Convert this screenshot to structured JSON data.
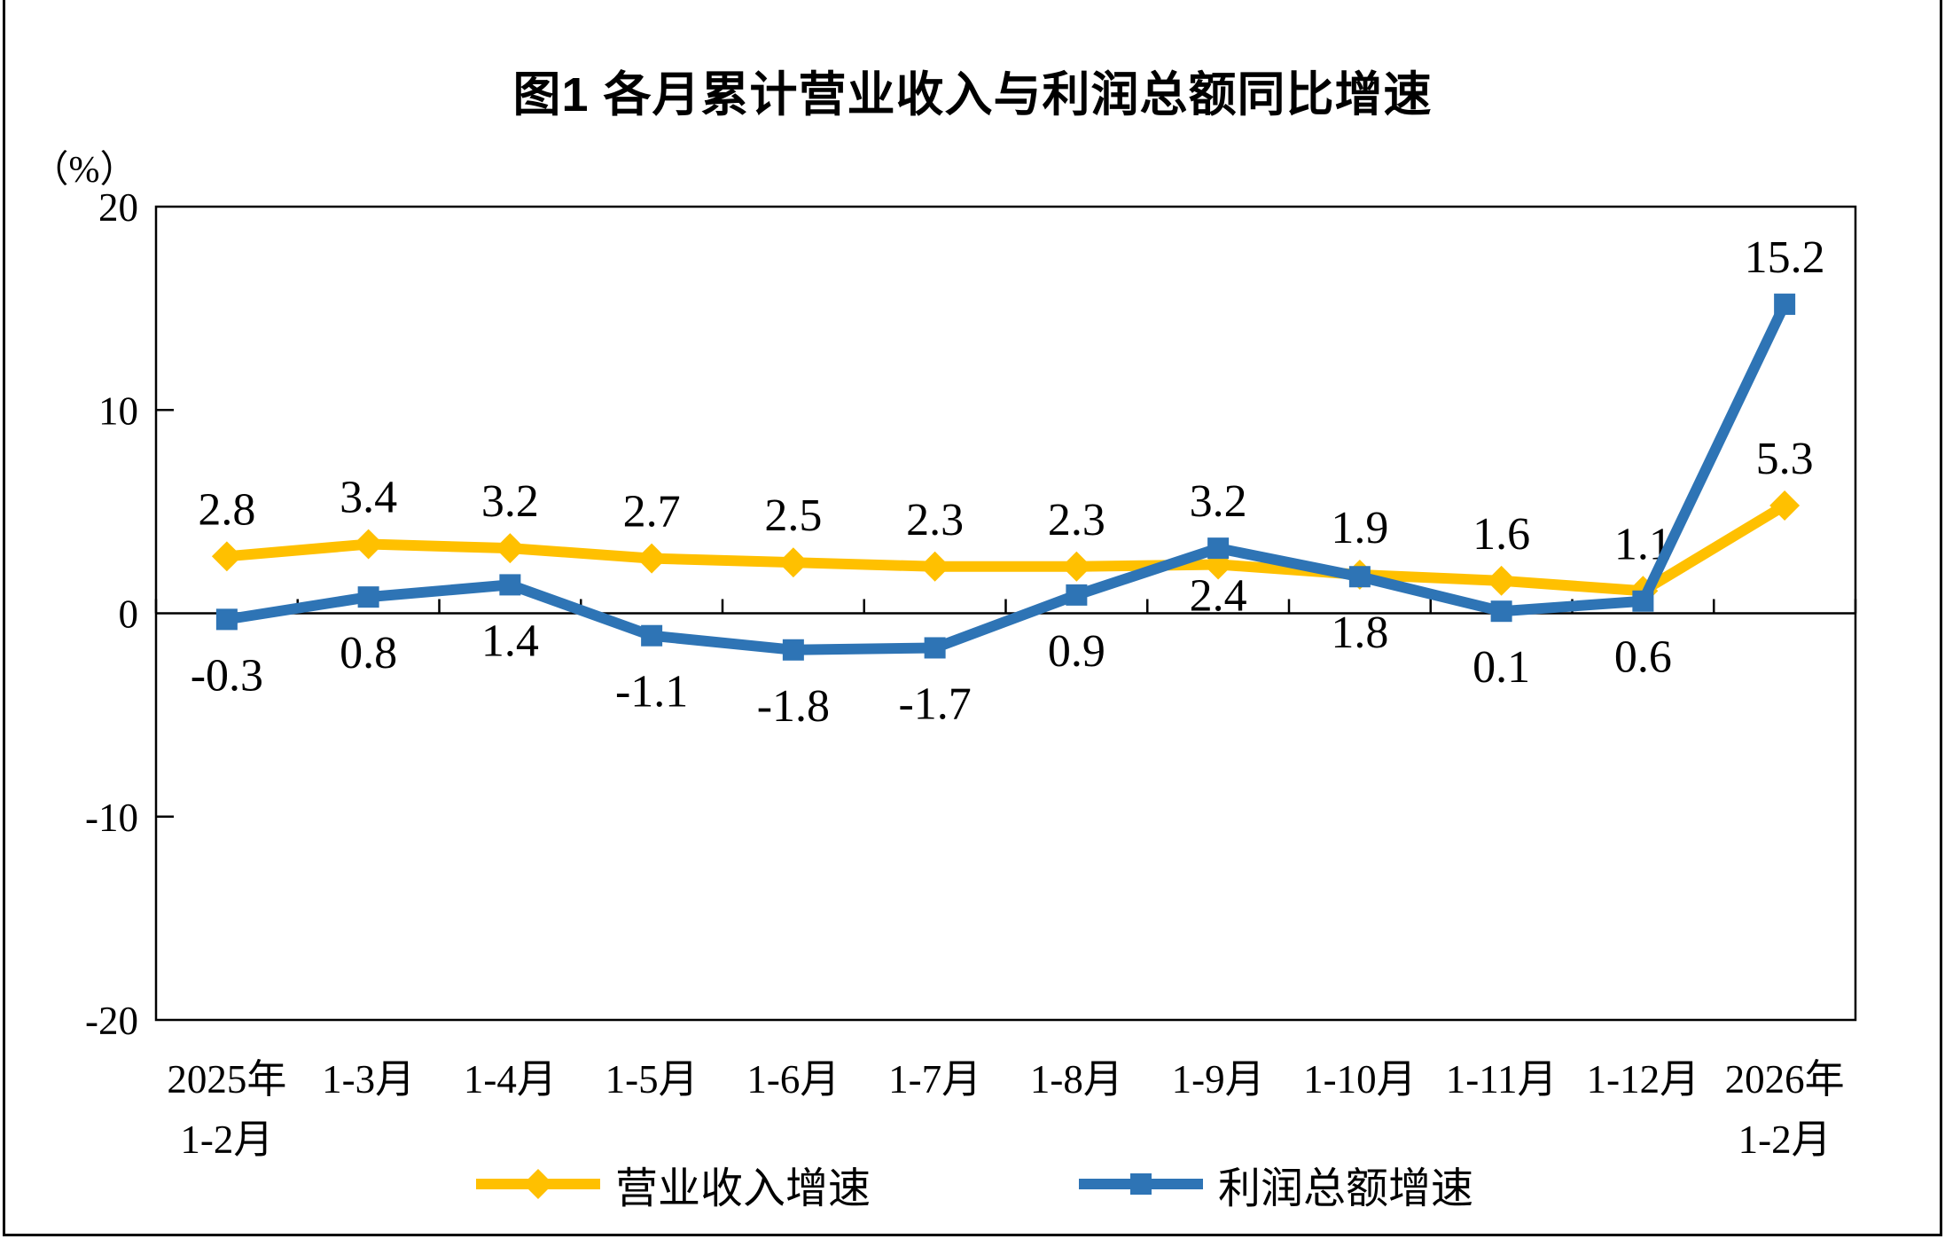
{
  "chart_data": {
    "type": "line",
    "title": "图1  各月累计营业收入与利润总额同比增速",
    "unit_label": "（%）",
    "categories": [
      [
        "2025年",
        "1-2月"
      ],
      [
        "1-3月"
      ],
      [
        "1-4月"
      ],
      [
        "1-5月"
      ],
      [
        "1-6月"
      ],
      [
        "1-7月"
      ],
      [
        "1-8月"
      ],
      [
        "1-9月"
      ],
      [
        "1-10月"
      ],
      [
        "1-11月"
      ],
      [
        "1-12月"
      ],
      [
        "2026年",
        "1-2月"
      ]
    ],
    "ylim": [
      -20,
      20
    ],
    "y_ticks": [
      20,
      10,
      0,
      -10,
      -20
    ],
    "grid": false,
    "legend_position": "bottom",
    "axis_color": "#000000",
    "series": [
      {
        "name": "营业收入增速",
        "color": "#FFC000",
        "marker": "diamond",
        "values": [
          2.8,
          3.4,
          3.2,
          2.7,
          2.5,
          2.3,
          2.3,
          2.4,
          1.9,
          1.6,
          1.1,
          5.3
        ],
        "label_sides": [
          "above",
          "above",
          "above",
          "above",
          "above",
          "above",
          "above",
          "below-tight",
          "above",
          "above",
          "above",
          "above"
        ]
      },
      {
        "name": "利润总额增速",
        "color": "#2E74B5",
        "marker": "square",
        "values": [
          -0.3,
          0.8,
          1.4,
          -1.1,
          -1.8,
          -1.7,
          0.9,
          3.2,
          1.8,
          0.1,
          0.6,
          15.2
        ],
        "label_sides": [
          "below",
          "below",
          "below",
          "below",
          "below",
          "below",
          "below",
          "above",
          "below",
          "below",
          "below",
          "above"
        ]
      }
    ]
  }
}
